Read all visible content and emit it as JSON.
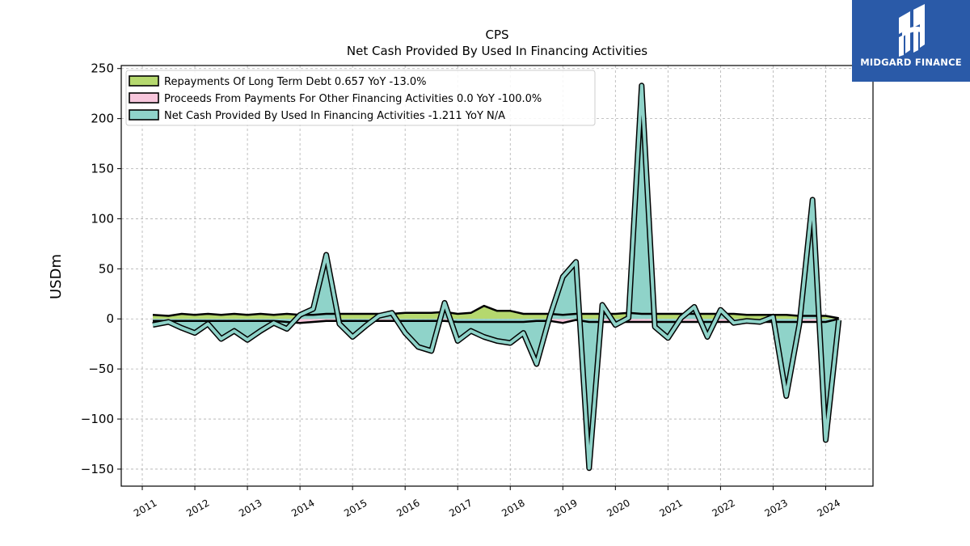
{
  "brand": {
    "name": "MIDGARD FINANCE",
    "bg_color": "#2a5aa8",
    "icon": "midgard-logo-icon"
  },
  "chart_data": {
    "type": "area",
    "title": "CPS",
    "subtitle": "Net Cash Provided By Used In Financing Activities",
    "ylabel": "USDm",
    "xlabel": "",
    "ylim": [
      -167,
      253
    ],
    "xlim": [
      2010.6,
      2024.9
    ],
    "yticks": [
      250,
      200,
      150,
      100,
      50,
      0,
      -50,
      -100,
      -150
    ],
    "ytick_labels": [
      "250",
      "200",
      "150",
      "100",
      "50",
      "0",
      "−50",
      "−100",
      "−150"
    ],
    "xticks": [
      2011,
      2012,
      2013,
      2014,
      2015,
      2016,
      2017,
      2018,
      2019,
      2020,
      2021,
      2022,
      2023,
      2024
    ],
    "xtick_labels": [
      "2011",
      "2012",
      "2013",
      "2014",
      "2015",
      "2016",
      "2017",
      "2018",
      "2019",
      "2020",
      "2021",
      "2022",
      "2023",
      "2024"
    ],
    "grid": true,
    "legend_position": "top-left",
    "x": [
      2011.2,
      2011.5,
      2011.75,
      2012.0,
      2012.25,
      2012.5,
      2012.75,
      2013.0,
      2013.25,
      2013.5,
      2013.75,
      2014.0,
      2014.25,
      2014.5,
      2014.75,
      2015.0,
      2015.25,
      2015.5,
      2015.75,
      2016.0,
      2016.25,
      2016.5,
      2016.75,
      2017.0,
      2017.25,
      2017.5,
      2017.75,
      2018.0,
      2018.25,
      2018.5,
      2018.75,
      2019.0,
      2019.25,
      2019.5,
      2019.75,
      2020.0,
      2020.25,
      2020.5,
      2020.75,
      2021.0,
      2021.25,
      2021.5,
      2021.75,
      2022.0,
      2022.25,
      2022.5,
      2022.75,
      2023.0,
      2023.25,
      2023.5,
      2023.75,
      2024.0,
      2024.25
    ],
    "series": [
      {
        "name": "Repayments Of Long Term Debt",
        "legend_label": "Repayments Of Long Term Debt  0.657 YoY -13.0%",
        "color": "#b5d86e",
        "values": [
          4,
          3,
          5,
          4,
          5,
          4,
          5,
          4,
          5,
          4,
          5,
          4,
          4,
          5,
          5,
          5,
          5,
          5,
          5,
          6,
          6,
          6,
          7,
          5,
          6,
          13,
          8,
          8,
          5,
          5,
          5,
          4,
          5,
          5,
          5,
          5,
          6,
          5,
          5,
          5,
          5,
          5,
          5,
          5,
          5,
          4,
          4,
          4,
          4,
          3,
          3,
          3,
          0.657
        ]
      },
      {
        "name": "Proceeds From Payments For Other Financing Activities",
        "legend_label": "Proceeds From Payments For Other Financing Activities  0.0 YoY -100.0%",
        "color": "#f7c6dc",
        "values": [
          -2,
          -2,
          -2,
          -2,
          -2,
          -2,
          -2,
          -2,
          -2,
          -2,
          -3,
          -4,
          -3,
          -2,
          -2,
          -2,
          -2,
          -2,
          -2,
          -2,
          -2,
          -2,
          -2,
          -3,
          -3,
          -3,
          -3,
          -3,
          -3,
          -2,
          -2,
          -4,
          -1,
          -3,
          -3,
          -3,
          -3,
          -3,
          -3,
          -3,
          -3,
          -3,
          -3,
          -3,
          -3,
          -3,
          -3,
          -3,
          -3,
          -3,
          -3,
          -3,
          0
        ]
      },
      {
        "name": "Net Cash Provided By Used In Financing Activities",
        "legend_label": "Net Cash Provided By Used In Financing Activities  -1.211 YoY N/A",
        "color": "#8fd3c9",
        "values": [
          -6,
          -3,
          -9,
          -14,
          -5,
          -20,
          -12,
          -21,
          -12,
          -4,
          -10,
          4,
          10,
          64,
          -5,
          -18,
          -7,
          3,
          6,
          -14,
          -28,
          -32,
          16,
          -22,
          -12,
          -18,
          -22,
          -24,
          -14,
          -45,
          2,
          42,
          57,
          -149,
          14,
          -6,
          1,
          233,
          -8,
          -19,
          1,
          12,
          -18,
          9,
          -4,
          -2,
          -3,
          2,
          -77,
          -5,
          119,
          -121,
          -1.211
        ]
      }
    ]
  }
}
